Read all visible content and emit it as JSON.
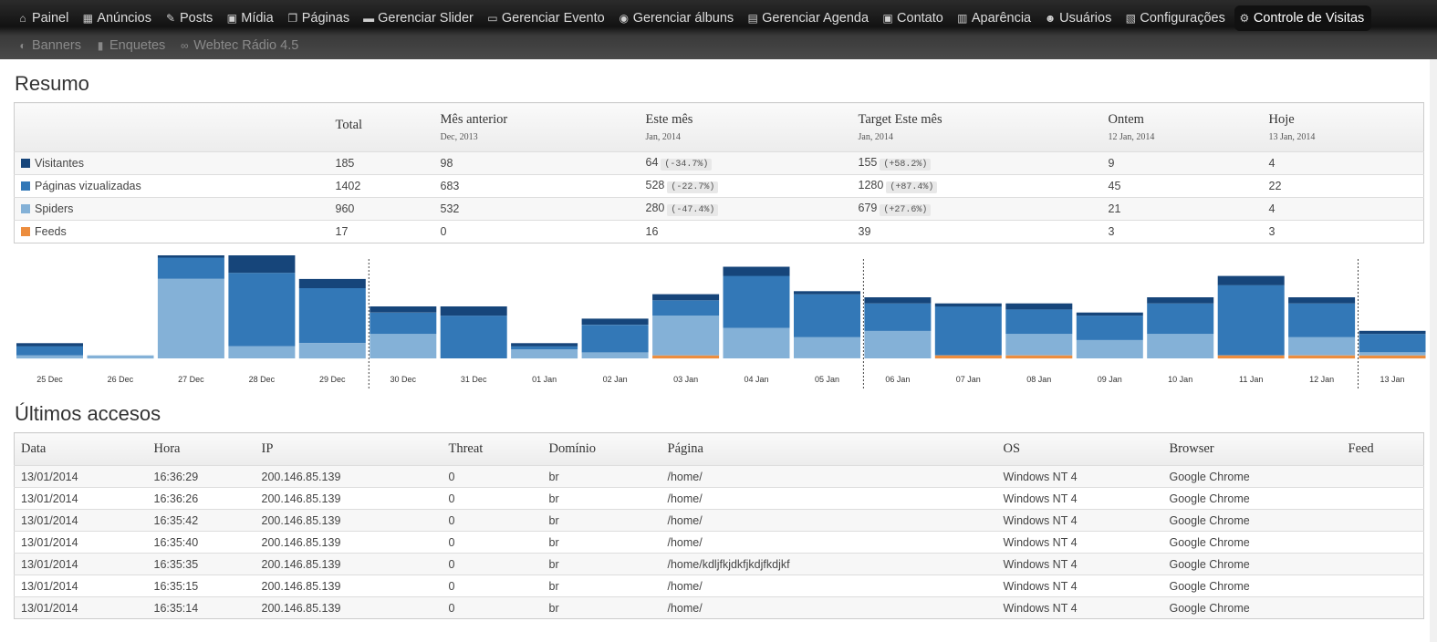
{
  "menu": {
    "row1": [
      {
        "label": "Painel",
        "icon": "house-icon",
        "glyph": "⌂"
      },
      {
        "label": "Anúncios",
        "icon": "ads-icon",
        "glyph": "▦"
      },
      {
        "label": "Posts",
        "icon": "pushpin-icon",
        "glyph": "✎"
      },
      {
        "label": "Mídia",
        "icon": "media-icon",
        "glyph": "▣"
      },
      {
        "label": "Páginas",
        "icon": "pages-icon",
        "glyph": "❐"
      },
      {
        "label": "Gerenciar Slider",
        "icon": "slider-icon",
        "glyph": "▬"
      },
      {
        "label": "Gerenciar Evento",
        "icon": "event-icon",
        "glyph": "▭"
      },
      {
        "label": "Gerenciar álbuns",
        "icon": "albums-icon",
        "glyph": "◉"
      },
      {
        "label": "Gerenciar Agenda",
        "icon": "calendar-icon",
        "glyph": "▤"
      },
      {
        "label": "Contato",
        "icon": "contact-icon",
        "glyph": "▣"
      },
      {
        "label": "Aparência",
        "icon": "appearance-icon",
        "glyph": "▥"
      },
      {
        "label": "Usuários",
        "icon": "users-icon",
        "glyph": "☻"
      },
      {
        "label": "Configurações",
        "icon": "settings-icon",
        "glyph": "▧"
      },
      {
        "label": "Controle de Visitas",
        "icon": "gear-icon",
        "glyph": "⚙",
        "active": true
      }
    ],
    "row2": [
      {
        "label": "Banners",
        "icon": "banners-icon",
        "glyph": "◐"
      },
      {
        "label": "Enquetes",
        "icon": "poll-icon",
        "glyph": "▮"
      },
      {
        "label": "Webtec Rádio 4.5",
        "icon": "radio-icon",
        "glyph": "∞"
      }
    ]
  },
  "summary": {
    "title": "Resumo",
    "headers": [
      {
        "label": "",
        "sub": ""
      },
      {
        "label": "Total",
        "sub": ""
      },
      {
        "label": "Mês anterior",
        "sub": "Dec, 2013"
      },
      {
        "label": "Este mês",
        "sub": "Jan, 2014"
      },
      {
        "label": "Target Este mês",
        "sub": "Jan, 2014"
      },
      {
        "label": "Ontem",
        "sub": "12 Jan, 2014"
      },
      {
        "label": "Hoje",
        "sub": "13 Jan, 2014"
      }
    ],
    "rows": [
      {
        "name": "Visitantes",
        "color": "#16457a",
        "total": "185",
        "prev": "98",
        "this": "64",
        "this_pct": "(-34.7%)",
        "target": "155",
        "target_pct": "(+58.2%)",
        "yesterday": "9",
        "today": "4"
      },
      {
        "name": "Páginas vizualizadas",
        "color": "#3378b7",
        "total": "1402",
        "prev": "683",
        "this": "528",
        "this_pct": "(-22.7%)",
        "target": "1280",
        "target_pct": "(+87.4%)",
        "yesterday": "45",
        "today": "22"
      },
      {
        "name": "Spiders",
        "color": "#84b1d7",
        "total": "960",
        "prev": "532",
        "this": "280",
        "this_pct": "(-47.4%)",
        "target": "679",
        "target_pct": "(+27.6%)",
        "yesterday": "21",
        "today": "4"
      },
      {
        "name": "Feeds",
        "color": "#ec8d3e",
        "total": "17",
        "prev": "0",
        "this": "16",
        "this_pct": "",
        "target": "39",
        "target_pct": "",
        "yesterday": "3",
        "today": "3"
      }
    ]
  },
  "chart_data": {
    "type": "bar",
    "stacked": true,
    "categories": [
      "25 Dec",
      "26 Dec",
      "27 Dec",
      "28 Dec",
      "29 Dec",
      "30 Dec",
      "31 Dec",
      "01 Jan",
      "02 Jan",
      "03 Jan",
      "04 Jan",
      "05 Jan",
      "06 Jan",
      "07 Jan",
      "08 Jan",
      "09 Jan",
      "10 Jan",
      "11 Jan",
      "12 Jan",
      "13 Jan"
    ],
    "series": [
      {
        "name": "Feeds",
        "color": "#ec8d3e",
        "values": [
          0,
          0,
          0,
          0,
          0,
          0,
          0,
          0,
          0,
          1,
          0,
          0,
          0,
          1,
          1,
          0,
          0,
          1,
          1,
          1
        ]
      },
      {
        "name": "Spiders",
        "color": "#84b1d7",
        "values": [
          1,
          1,
          26,
          4,
          5,
          8,
          0,
          3,
          2,
          13,
          10,
          7,
          9,
          0,
          7,
          6,
          8,
          0,
          6,
          1
        ]
      },
      {
        "name": "Páginas vizualizadas",
        "color": "#3378b7",
        "values": [
          3,
          0,
          7,
          24,
          18,
          7,
          14,
          1,
          9,
          5,
          17,
          14,
          9,
          16,
          8,
          8,
          10,
          23,
          11,
          6
        ]
      },
      {
        "name": "Visitantes",
        "color": "#16457a",
        "values": [
          1,
          0,
          1,
          6,
          3,
          2,
          3,
          1,
          2,
          2,
          3,
          1,
          2,
          1,
          2,
          1,
          2,
          3,
          2,
          1
        ]
      }
    ],
    "week_separators_after": [
      "29 Dec",
      "05 Jan",
      "12 Jan"
    ],
    "legend": "none"
  },
  "log": {
    "title": "Últimos accesos",
    "headers": [
      "Data",
      "Hora",
      "IP",
      "Threat",
      "Domínio",
      "Página",
      "OS",
      "Browser",
      "Feed"
    ],
    "rows": [
      [
        "13/01/2014",
        "16:36:29",
        "200.146.85.139",
        "0",
        "br",
        "/home/",
        "Windows NT 4",
        "Google Chrome",
        ""
      ],
      [
        "13/01/2014",
        "16:36:26",
        "200.146.85.139",
        "0",
        "br",
        "/home/",
        "Windows NT 4",
        "Google Chrome",
        ""
      ],
      [
        "13/01/2014",
        "16:35:42",
        "200.146.85.139",
        "0",
        "br",
        "/home/",
        "Windows NT 4",
        "Google Chrome",
        ""
      ],
      [
        "13/01/2014",
        "16:35:40",
        "200.146.85.139",
        "0",
        "br",
        "/home/",
        "Windows NT 4",
        "Google Chrome",
        ""
      ],
      [
        "13/01/2014",
        "16:35:35",
        "200.146.85.139",
        "0",
        "br",
        "/home/kdljfkjdkfjkdjfkdjkf",
        "Windows NT 4",
        "Google Chrome",
        ""
      ],
      [
        "13/01/2014",
        "16:35:15",
        "200.146.85.139",
        "0",
        "br",
        "/home/",
        "Windows NT 4",
        "Google Chrome",
        ""
      ],
      [
        "13/01/2014",
        "16:35:14",
        "200.146.85.139",
        "0",
        "br",
        "/home/",
        "Windows NT 4",
        "Google Chrome",
        ""
      ]
    ]
  }
}
